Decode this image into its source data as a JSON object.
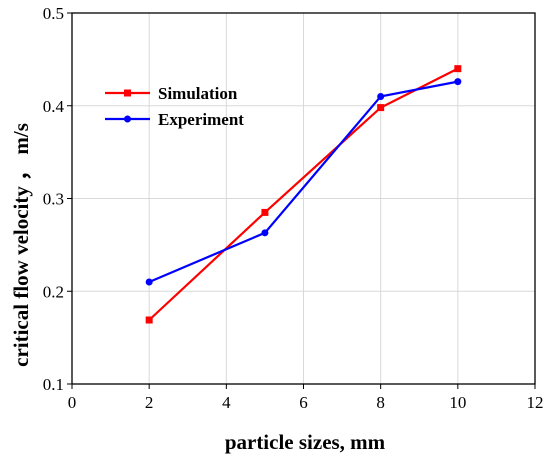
{
  "chart_data": {
    "type": "line",
    "xlabel": "particle sizes, mm",
    "ylabel": "critical flow velocity ， m/s",
    "xlim": [
      0,
      12
    ],
    "ylim": [
      0.1,
      0.5
    ],
    "xticks": [
      0,
      2,
      4,
      6,
      8,
      10,
      12
    ],
    "yticks": [
      0.1,
      0.2,
      0.3,
      0.4,
      0.5
    ],
    "x_tick_labels": [
      "0",
      "2",
      "4",
      "6",
      "8",
      "10",
      "12"
    ],
    "y_tick_labels": [
      "0.1",
      "0.2",
      "0.3",
      "0.4",
      "0.5"
    ],
    "grid": true,
    "legend_position": "upper-left",
    "series": [
      {
        "name": "Simulation",
        "color": "#ff0000",
        "marker": "square",
        "x": [
          2,
          5,
          8,
          10
        ],
        "values": [
          0.169,
          0.285,
          0.398,
          0.44
        ]
      },
      {
        "name": "Experiment",
        "color": "#0000ff",
        "marker": "circle",
        "x": [
          2,
          5,
          8,
          10
        ],
        "values": [
          0.21,
          0.263,
          0.41,
          0.426
        ]
      }
    ]
  }
}
